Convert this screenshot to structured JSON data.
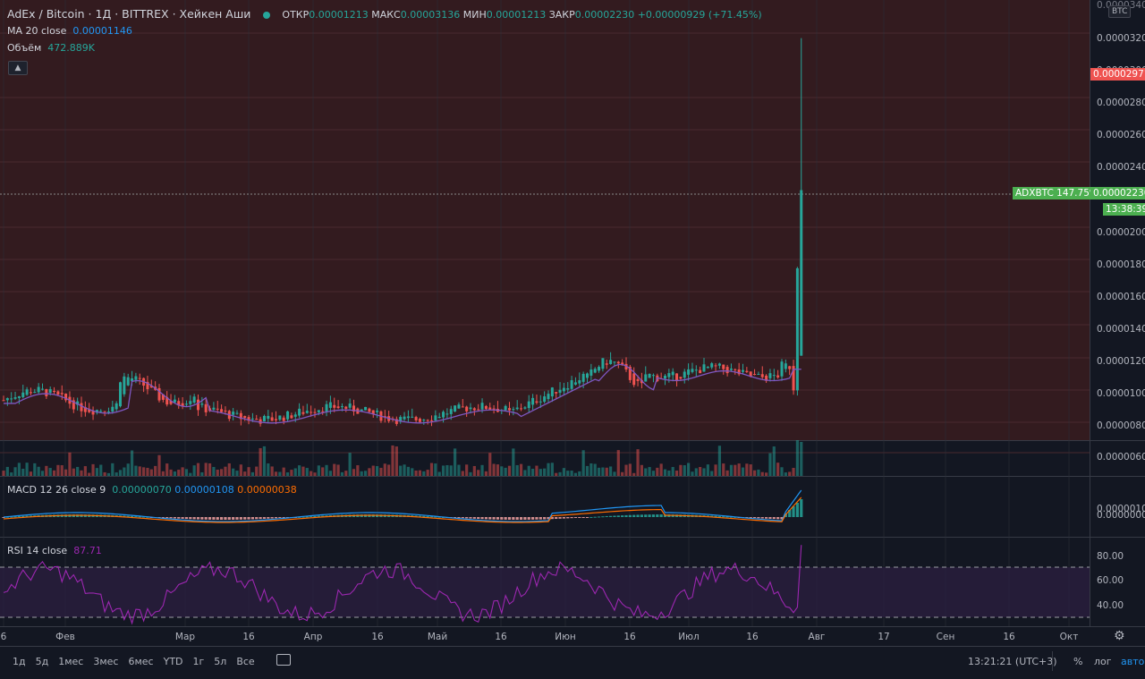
{
  "header": {
    "symbol": "AdEx / Bitcoin · 1Д · BITTREX · Хейкен Аши",
    "o_label": "ОТКР",
    "o_val": "0.00001213",
    "h_label": "МАКС",
    "h_val": "0.00003136",
    "l_label": "МИН",
    "l_val": "0.00001213",
    "c_label": "ЗАКР",
    "c_val": "0.00002230",
    "change": "+0.00000929 (+71.45%)"
  },
  "ma": {
    "label": "MA 20 close",
    "value": "0.00001146"
  },
  "volume": {
    "label": "Объём",
    "value": "472.889K"
  },
  "macd": {
    "label": "MACD 12 26 close 9",
    "v1": "0.00000070",
    "v2": "0.00000108",
    "v3": "0.00000038"
  },
  "rsi": {
    "label": "RSI 14 close",
    "value": "87.71"
  },
  "price_axis": {
    "currency": "BTC",
    "ticks": [
      "0.00003200",
      "0.00003000",
      "0.00002800",
      "0.00002600",
      "0.00002400",
      "0.00002000",
      "0.00001800",
      "0.00001600",
      "0.00001400",
      "0.00001200",
      "0.00001000",
      "0.00000800",
      "0.00000600"
    ],
    "top_partial": "0.00003400",
    "high_tag": "0.00002971",
    "last_tag": "0.00002230",
    "last_label": "ADXBTC 147.75%",
    "countdown": "13:38:39"
  },
  "macd_axis": [
    "0.00000100",
    "0.00000000"
  ],
  "rsi_axis": [
    "80.00",
    "60.00",
    "40.00"
  ],
  "time_axis": [
    "6",
    "Фев",
    "Мар",
    "16",
    "Апр",
    "16",
    "Май",
    "16",
    "Июн",
    "16",
    "Июл",
    "16",
    "Авг",
    "17",
    "Сен",
    "16",
    "Окт"
  ],
  "toolbar": {
    "ranges": [
      "1д",
      "5д",
      "1мес",
      "3мес",
      "6мес",
      "YTD",
      "1г",
      "5л",
      "Все"
    ],
    "time": "13:21:21 (UTC+3)",
    "pct": "%",
    "log": "лог",
    "auto": "авто"
  },
  "colors": {
    "bg": "#131722",
    "up": "#26a69a",
    "down": "#ef5350",
    "ma": "#7e57c2",
    "rsi": "#9c27b0"
  },
  "chart_data": {
    "type": "candlestick",
    "ma_last": 1.146e-05,
    "last_close": 2.23e-05,
    "high": 3.136e-05,
    "rsi_last": 87.71,
    "rsi_levels": [
      70,
      30
    ]
  }
}
